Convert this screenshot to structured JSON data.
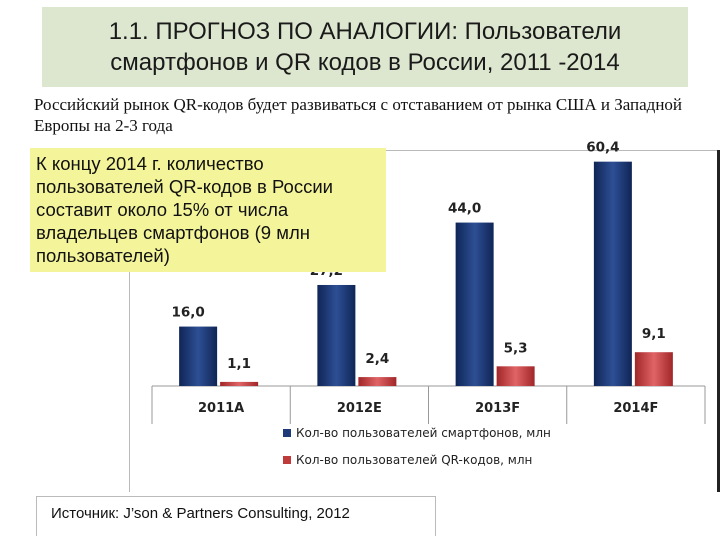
{
  "title": "1.1. ПРОГНОЗ ПО АНАЛОГИИ: Пользователи смартфонов и QR кодов в России, 2011 -2014",
  "subtitle": "Российский рынок QR-кодов будет развиваться с отставанием от рынка США и Западной Европы на 2-3 года",
  "callout": "К концу 2014 г. количество пользователей QR-кодов в России составит около 15% от числа владельцев смартфонов (9 млн пользователей)",
  "source": "Источник: J’son & Partners Consulting, 2012",
  "colors": {
    "smartphones": "#1f3a78",
    "qr": "#c0393b",
    "title_bg": "#dde7cf",
    "callout_bg": "#f4f59a"
  },
  "chart_data": {
    "type": "bar",
    "categories": [
      "2011A",
      "2012E",
      "2013F",
      "2014F"
    ],
    "series": [
      {
        "name": "Кол-во пользователей смартфонов, млн",
        "values": [
          16.0,
          27.2,
          44.0,
          60.4
        ],
        "labels": [
          "16,0",
          "27,2",
          "44,0",
          "60,4"
        ]
      },
      {
        "name": "Кол-во пользователей QR-кодов, млн",
        "values": [
          1.1,
          2.4,
          5.3,
          9.1
        ],
        "labels": [
          "1,1",
          "2,4",
          "5,3",
          "9,1"
        ]
      }
    ],
    "ylim": [
      0,
      70
    ],
    "legend_position": "bottom"
  }
}
